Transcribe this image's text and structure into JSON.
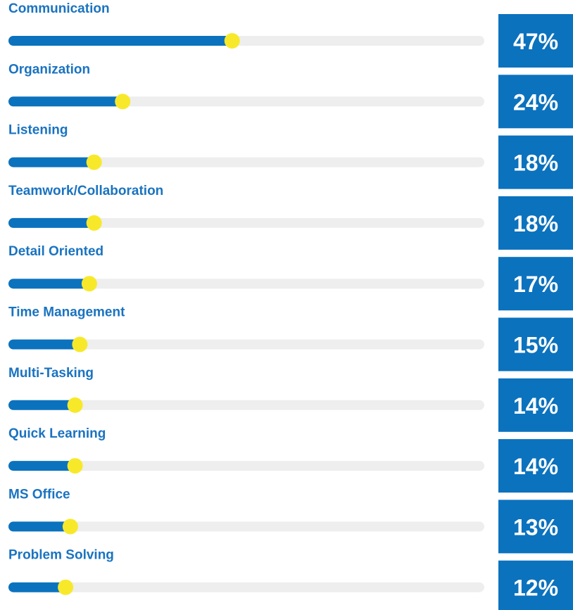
{
  "chart_data": {
    "type": "progress",
    "categories": [
      "Communication",
      "Organization",
      "Listening",
      "Teamwork/Collaboration",
      "Detail Oriented",
      "Time Management",
      "Multi-Tasking",
      "Quick Learning",
      "MS Office",
      "Problem Solving"
    ],
    "values": [
      47,
      24,
      18,
      18,
      17,
      15,
      14,
      14,
      13,
      12
    ],
    "value_labels": [
      "47%",
      "24%",
      "18%",
      "18%",
      "17%",
      "15%",
      "14%",
      "14%",
      "13%",
      "12%"
    ],
    "xlim": [
      0,
      100
    ],
    "color": "#0b72be",
    "track_color": "#eeeeee",
    "knob_color": "#f7e92a"
  }
}
